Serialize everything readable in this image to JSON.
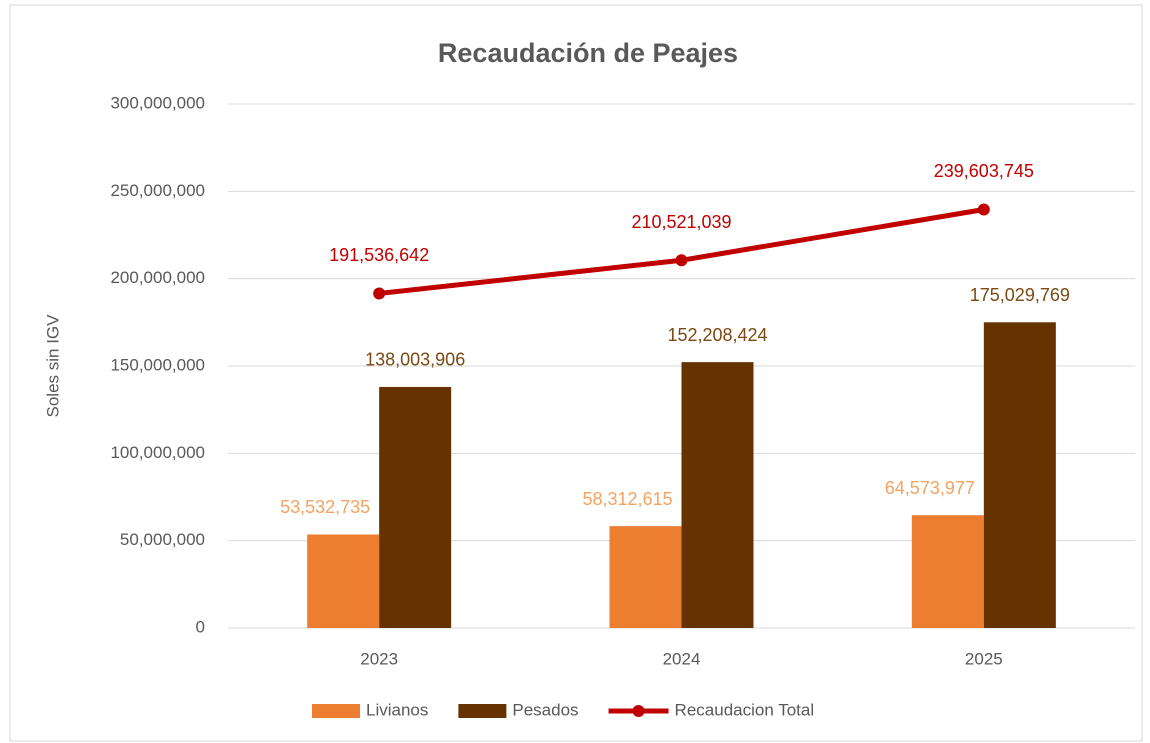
{
  "chart_data": {
    "type": "bar",
    "title": "Recaudación de Peajes",
    "y_label": "Soles sin IGV",
    "categories": [
      "2023",
      "2024",
      "2025"
    ],
    "ylim": [
      0,
      300000000
    ],
    "yticks": [
      0,
      {
        "value": 50000000,
        "label": "50,000,000"
      },
      {
        "value": 100000000,
        "label": "100,000,000"
      },
      {
        "value": 150000000,
        "label": "150,000,000"
      },
      {
        "value": 200000000,
        "label": "200,000,000"
      },
      {
        "value": 250000000,
        "label": "250,000,000"
      },
      {
        "value": 300000000,
        "label": "300,000,000"
      }
    ],
    "grid": true,
    "legend": "bottom",
    "series": [
      {
        "name": "Livianos",
        "type": "bar",
        "color": "#ED7D31",
        "label_color": "#F4A261",
        "values": [
          53532735,
          58312615,
          64573977
        ],
        "value_labels": [
          "53,532,735",
          "58,312,615",
          "64,573,977"
        ]
      },
      {
        "name": "Pesados",
        "type": "bar",
        "color": "#663300",
        "label_color": "#7B4A12",
        "values": [
          138003906,
          152208424,
          175029769
        ],
        "value_labels": [
          "138,003,906",
          "152,208,424",
          "175,029,769"
        ]
      },
      {
        "name": "Recaudacion Total",
        "type": "line",
        "color": "#C00000",
        "label_color": "#C00000",
        "values": [
          191536642,
          210521039,
          239603745
        ],
        "value_labels": [
          "191,536,642",
          "210,521,039",
          "239,603,745"
        ]
      }
    ]
  }
}
